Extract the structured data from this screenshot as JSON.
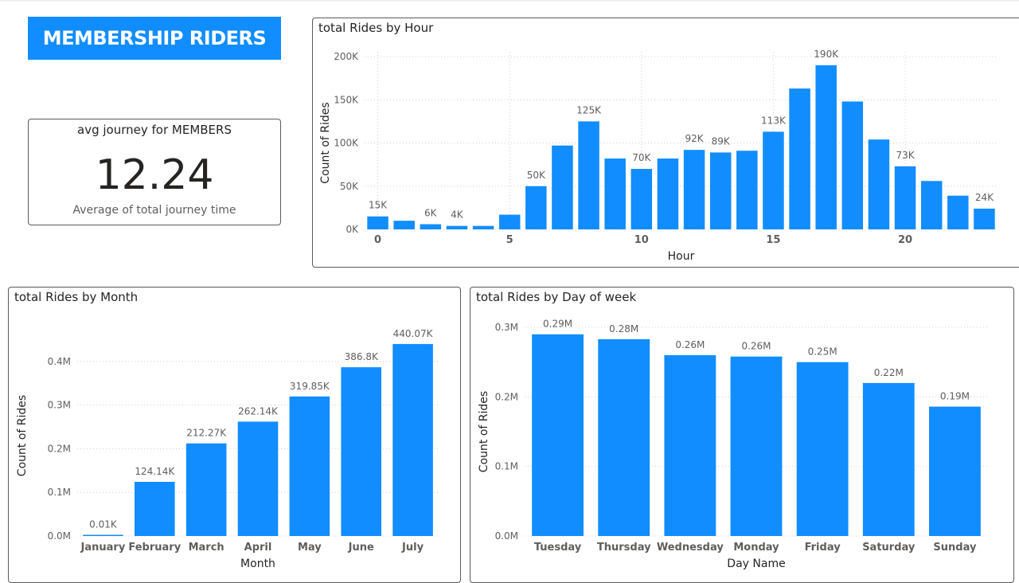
{
  "banner": {
    "title": "MEMBERSHIP RIDERS"
  },
  "card": {
    "title": "avg journey for MEMBERS",
    "value": "12.24",
    "label": "Average of total journey time"
  },
  "colors": {
    "bar": "#118dff",
    "text": "#252423",
    "muted": "#605e5c",
    "grid": "#d0d0d0"
  },
  "chart_data": [
    {
      "id": "hour",
      "type": "bar",
      "title": "total Rides by Hour",
      "xlabel": "Hour",
      "ylabel": "Count of Rides",
      "categories": [
        0,
        1,
        2,
        3,
        4,
        5,
        6,
        7,
        8,
        9,
        10,
        11,
        12,
        13,
        14,
        15,
        16,
        17,
        18,
        19,
        20,
        21,
        22,
        23
      ],
      "values": [
        15000,
        10000,
        6000,
        4000,
        4000,
        17000,
        50000,
        97000,
        125000,
        82000,
        70000,
        82000,
        92000,
        89000,
        91000,
        113000,
        163000,
        190000,
        148000,
        104000,
        73000,
        56000,
        39000,
        24000
      ],
      "data_labels": {
        "0": "15K",
        "2": "6K",
        "3": "4K",
        "6": "50K",
        "8": "125K",
        "10": "70K",
        "12": "92K",
        "13": "89K",
        "15": "113K",
        "17": "190K",
        "20": "73K",
        "23": "24K"
      },
      "ylim": [
        0,
        200000
      ],
      "yticks": [
        {
          "v": 0,
          "label": "0K"
        },
        {
          "v": 50000,
          "label": "50K"
        },
        {
          "v": 100000,
          "label": "100K"
        },
        {
          "v": 150000,
          "label": "150K"
        },
        {
          "v": 200000,
          "label": "200K"
        }
      ],
      "xticks": [
        {
          "v": 0,
          "label": "0"
        },
        {
          "v": 5,
          "label": "5"
        },
        {
          "v": 10,
          "label": "10"
        },
        {
          "v": 15,
          "label": "15"
        },
        {
          "v": 20,
          "label": "20"
        }
      ],
      "grid": "dotted, both axes"
    },
    {
      "id": "month",
      "type": "bar",
      "title": "total Rides by Month",
      "xlabel": "Month",
      "ylabel": "Count of Rides",
      "categories": [
        "January",
        "February",
        "March",
        "April",
        "May",
        "June",
        "July"
      ],
      "values": [
        10,
        124140,
        212270,
        262140,
        319850,
        386800,
        440070
      ],
      "data_labels": [
        "0.01K",
        "124.14K",
        "212.27K",
        "262.14K",
        "319.85K",
        "386.8K",
        "440.07K"
      ],
      "ylim": [
        0,
        460000
      ],
      "yticks": [
        {
          "v": 0,
          "label": "0.0M"
        },
        {
          "v": 100000,
          "label": "0.1M"
        },
        {
          "v": 200000,
          "label": "0.2M"
        },
        {
          "v": 300000,
          "label": "0.3M"
        },
        {
          "v": 400000,
          "label": "0.4M"
        }
      ],
      "grid": "dotted, y axis"
    },
    {
      "id": "day",
      "type": "bar",
      "title": "total Rides by Day of week",
      "xlabel": "Day Name",
      "ylabel": "Count of Rides",
      "categories": [
        "Tuesday",
        "Thursday",
        "Wednesday",
        "Monday",
        "Friday",
        "Saturday",
        "Sunday"
      ],
      "values": [
        290000,
        283000,
        260000,
        258000,
        250000,
        220000,
        186000
      ],
      "data_labels": [
        "0.29M",
        "0.28M",
        "0.26M",
        "0.26M",
        "0.25M",
        "0.22M",
        "0.19M"
      ],
      "ylim": [
        0,
        300000
      ],
      "yticks": [
        {
          "v": 0,
          "label": "0.0M"
        },
        {
          "v": 100000,
          "label": "0.1M"
        },
        {
          "v": 200000,
          "label": "0.2M"
        },
        {
          "v": 300000,
          "label": "0.3M"
        }
      ],
      "grid": "dotted, y axis"
    }
  ]
}
